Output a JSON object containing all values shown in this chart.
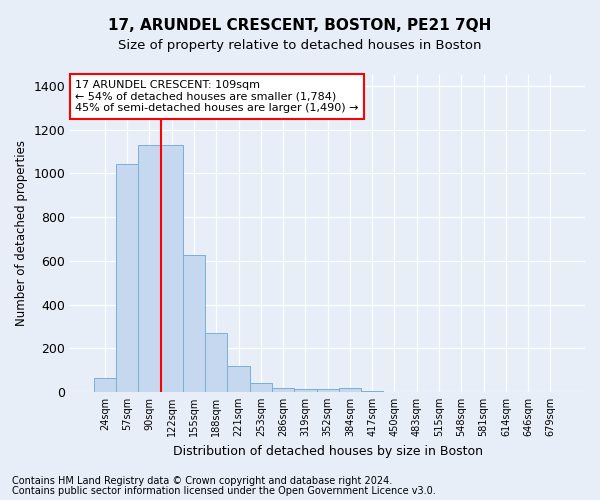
{
  "title": "17, ARUNDEL CRESCENT, BOSTON, PE21 7QH",
  "subtitle": "Size of property relative to detached houses in Boston",
  "xlabel": "Distribution of detached houses by size in Boston",
  "ylabel": "Number of detached properties",
  "footnote1": "Contains HM Land Registry data © Crown copyright and database right 2024.",
  "footnote2": "Contains public sector information licensed under the Open Government Licence v3.0.",
  "bin_labels": [
    "24sqm",
    "57sqm",
    "90sqm",
    "122sqm",
    "155sqm",
    "188sqm",
    "221sqm",
    "253sqm",
    "286sqm",
    "319sqm",
    "352sqm",
    "384sqm",
    "417sqm",
    "450sqm",
    "483sqm",
    "515sqm",
    "548sqm",
    "581sqm",
    "614sqm",
    "646sqm",
    "679sqm"
  ],
  "bar_heights": [
    65,
    1045,
    1130,
    1130,
    625,
    270,
    120,
    40,
    20,
    15,
    15,
    20,
    5,
    0,
    0,
    0,
    0,
    0,
    0,
    0,
    0
  ],
  "bar_color": "#c5d8f0",
  "bar_edge_color": "#7bafd4",
  "vline_position": 2.5,
  "vline_color": "red",
  "annotation_text": "17 ARUNDEL CRESCENT: 109sqm\n← 54% of detached houses are smaller (1,784)\n45% of semi-detached houses are larger (1,490) →",
  "annotation_box_facecolor": "white",
  "annotation_box_edgecolor": "red",
  "ylim": [
    0,
    1450
  ],
  "yticks": [
    0,
    200,
    400,
    600,
    800,
    1000,
    1200,
    1400
  ],
  "bg_color": "#e8eef8",
  "plot_bg_color": "#e8eef8",
  "title_fontsize": 11,
  "subtitle_fontsize": 9.5,
  "footnote_fontsize": 7
}
